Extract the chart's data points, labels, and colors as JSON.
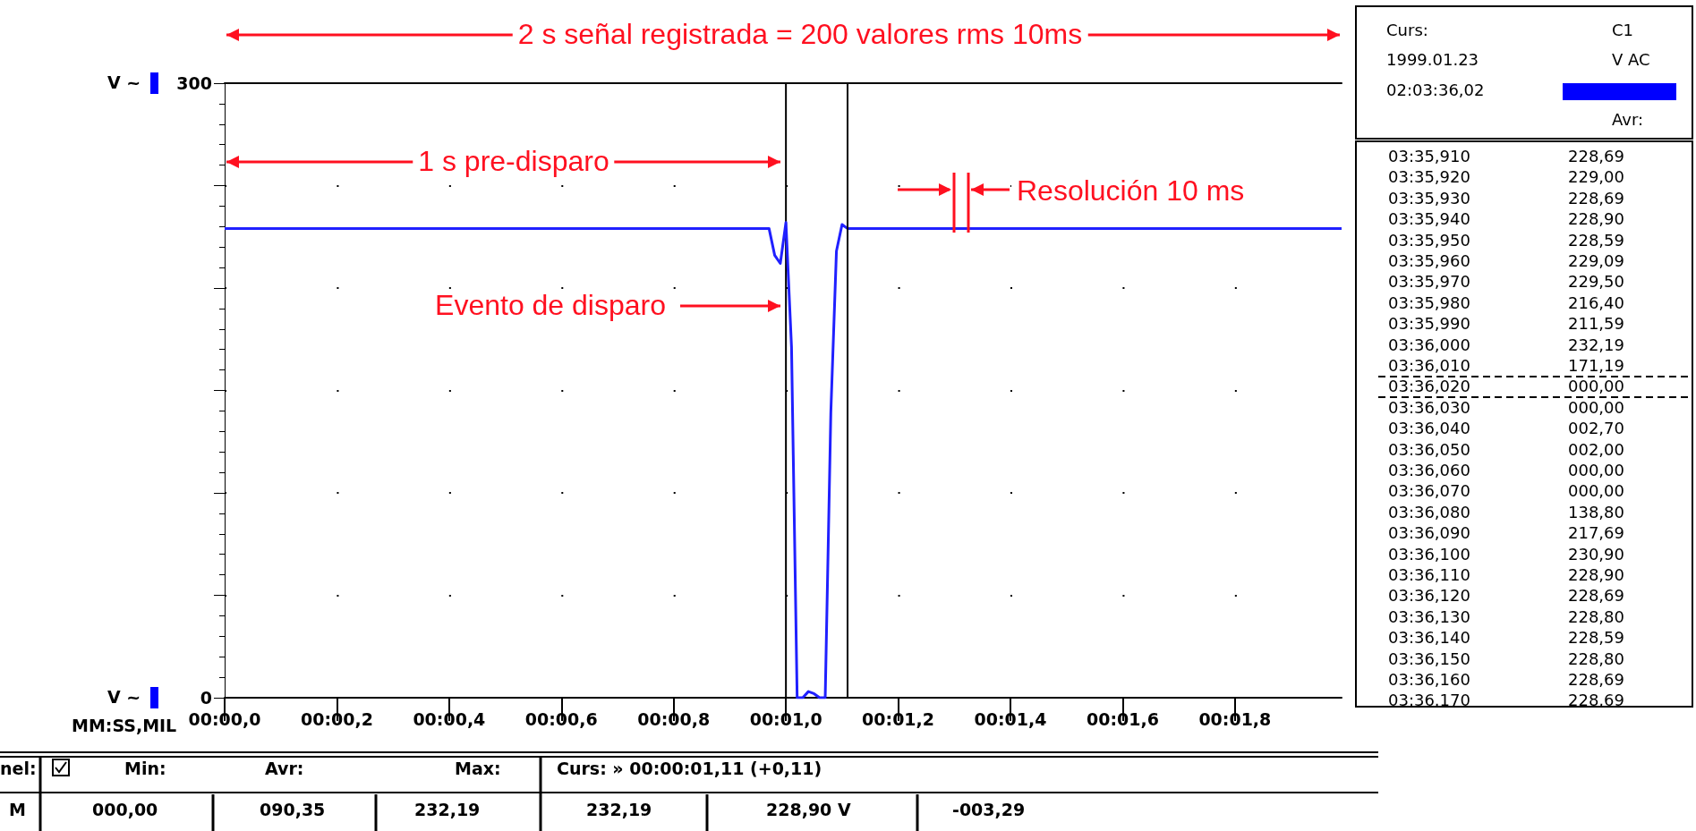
{
  "chart_data": {
    "type": "line",
    "xlabel": "MM:SS,MIL",
    "ylabel": "V ~",
    "categories": [
      "00:00,0",
      null,
      null,
      null,
      null,
      null,
      null,
      null,
      null,
      null,
      null,
      null,
      null,
      null,
      null,
      null,
      null,
      null,
      null,
      null,
      "00:00,2",
      null,
      null,
      null,
      null,
      null,
      null,
      null,
      null,
      null,
      null,
      null,
      null,
      null,
      null,
      null,
      null,
      null,
      null,
      null,
      "00:00,4",
      null,
      null,
      null,
      null,
      null,
      null,
      null,
      null,
      null,
      null,
      null,
      null,
      null,
      null,
      null,
      null,
      null,
      null,
      null,
      "00:00,6",
      null,
      null,
      null,
      null,
      null,
      null,
      null,
      null,
      null,
      null,
      null,
      null,
      null,
      null,
      null,
      null,
      null,
      null,
      null,
      "00:00,8",
      null,
      null,
      null,
      null,
      null,
      null,
      null,
      null,
      null,
      null,
      null,
      null,
      null,
      null,
      null,
      null,
      null,
      null,
      null,
      "00:01,0",
      null,
      null,
      null,
      null,
      null,
      null,
      null,
      null,
      null,
      null,
      null,
      null,
      null,
      null,
      null,
      null,
      null,
      null,
      null,
      "00:01,2",
      null,
      null,
      null,
      null,
      null,
      null,
      null,
      null,
      null,
      null,
      null,
      null,
      null,
      null,
      null,
      null,
      null,
      null,
      null,
      "00:01,4",
      null,
      null,
      null,
      null,
      null,
      null,
      null,
      null,
      null,
      null,
      null,
      null,
      null,
      null,
      null,
      null,
      null,
      null,
      null,
      "00:01,6",
      null,
      null,
      null,
      null,
      null,
      null,
      null,
      null,
      null,
      null,
      null,
      null,
      null,
      null,
      null,
      null,
      null,
      null,
      null,
      "00:01,8",
      null,
      null,
      null,
      null,
      null,
      null,
      null,
      null,
      null,
      null,
      null,
      null,
      null,
      null,
      null,
      null,
      null,
      null,
      null
    ],
    "series": [
      {
        "color": "#2020ff",
        "values": [
          229,
          229,
          229,
          229,
          229,
          229,
          229,
          229,
          229,
          229,
          229,
          229,
          229,
          229,
          229,
          229,
          229,
          229,
          229,
          229,
          229,
          229,
          229,
          229,
          229,
          229,
          229,
          229,
          229,
          229,
          229,
          229,
          229,
          229,
          229,
          229,
          229,
          229,
          229,
          229,
          229,
          229,
          229,
          229,
          229,
          229,
          229,
          229,
          229,
          229,
          229,
          229,
          229,
          229,
          229,
          229,
          229,
          229,
          229,
          229,
          229,
          229,
          229,
          229,
          229,
          229,
          229,
          229,
          229,
          229,
          229,
          229,
          229,
          229,
          229,
          229,
          229,
          229,
          229,
          229,
          229,
          229,
          229,
          229,
          229,
          229,
          229,
          229,
          229,
          229,
          229,
          229,
          229,
          229,
          229,
          229,
          229,
          229,
          216,
          212,
          232,
          171,
          0,
          0,
          3,
          2,
          0,
          0,
          139,
          218,
          231,
          229,
          229,
          229,
          229,
          229,
          229,
          229,
          229,
          229,
          229,
          229,
          229,
          229,
          229,
          229,
          229,
          229,
          229,
          229,
          229,
          229,
          229,
          229,
          229,
          229,
          229,
          229,
          229,
          229,
          229,
          229,
          229,
          229,
          229,
          229,
          229,
          229,
          229,
          229,
          229,
          229,
          229,
          229,
          229,
          229,
          229,
          229,
          229,
          229,
          229,
          229,
          229,
          229,
          229,
          229,
          229,
          229,
          229,
          229,
          229,
          229,
          229,
          229,
          229,
          229,
          229,
          229,
          229,
          229,
          229,
          229,
          229,
          229,
          229,
          229,
          229,
          229,
          229,
          229,
          229,
          229,
          229,
          229,
          229,
          229,
          229,
          229,
          229,
          229
        ]
      }
    ],
    "ylim": [
      0,
      300
    ],
    "yticks": [
      0,
      {
        "value": 50,
        "label": null
      },
      {
        "value": 100,
        "label": null
      },
      {
        "value": 150,
        "label": null
      },
      {
        "value": 200,
        "label": null
      },
      {
        "value": 250,
        "label": null
      },
      300
    ],
    "grid": true,
    "ref_lines": [
      {
        "axis": "x",
        "value": "00:01,0",
        "color": "#000000"
      }
    ],
    "annotations": [
      "2 s señal registrada = 200 valores rms 10ms",
      "1 s pre-disparo",
      "Resolución 10 ms",
      "Evento de disparo",
      "Curs:",
      "C1",
      "1999.01.23",
      "V AC",
      "02:03:36,02",
      "Avr:",
      "03:35,910",
      "228,69",
      "03:35,920",
      "229,00",
      "03:35,930",
      "228,69",
      "03:35,940",
      "228,90",
      "03:35,950",
      "228,59",
      "03:35,960",
      "229,09",
      "03:35,970",
      "229,50",
      "03:35,980",
      "216,40",
      "03:35,990",
      "211,59",
      "03:36,000",
      "232,19",
      "03:36,010",
      "171,19",
      "03:36,020",
      "000,00",
      "03:36,030",
      "000,00",
      "03:36,040",
      "002,70",
      "03:36,050",
      "002,00",
      "03:36,060",
      "000,00",
      "03:36,070",
      "000,00",
      "03:36,080",
      "138,80",
      "03:36,090",
      "217,69",
      "03:36,100",
      "230,90",
      "03:36,110",
      "228,90",
      "03:36,120",
      "228,69",
      "03:36,130",
      "228,80",
      "03:36,140",
      "228,59",
      "03:36,150",
      "228,80",
      "03:36,160",
      "228,69",
      "03:36.170",
      "228,69",
      "nel:",
      "Min:",
      "Avr:",
      "Max:",
      "Curs: » 00:00:01,11 (+0,11)",
      "M",
      "000,00",
      "090,35",
      "232,19",
      "232,19",
      "228,90  V",
      "-003,29"
    ]
  }
}
